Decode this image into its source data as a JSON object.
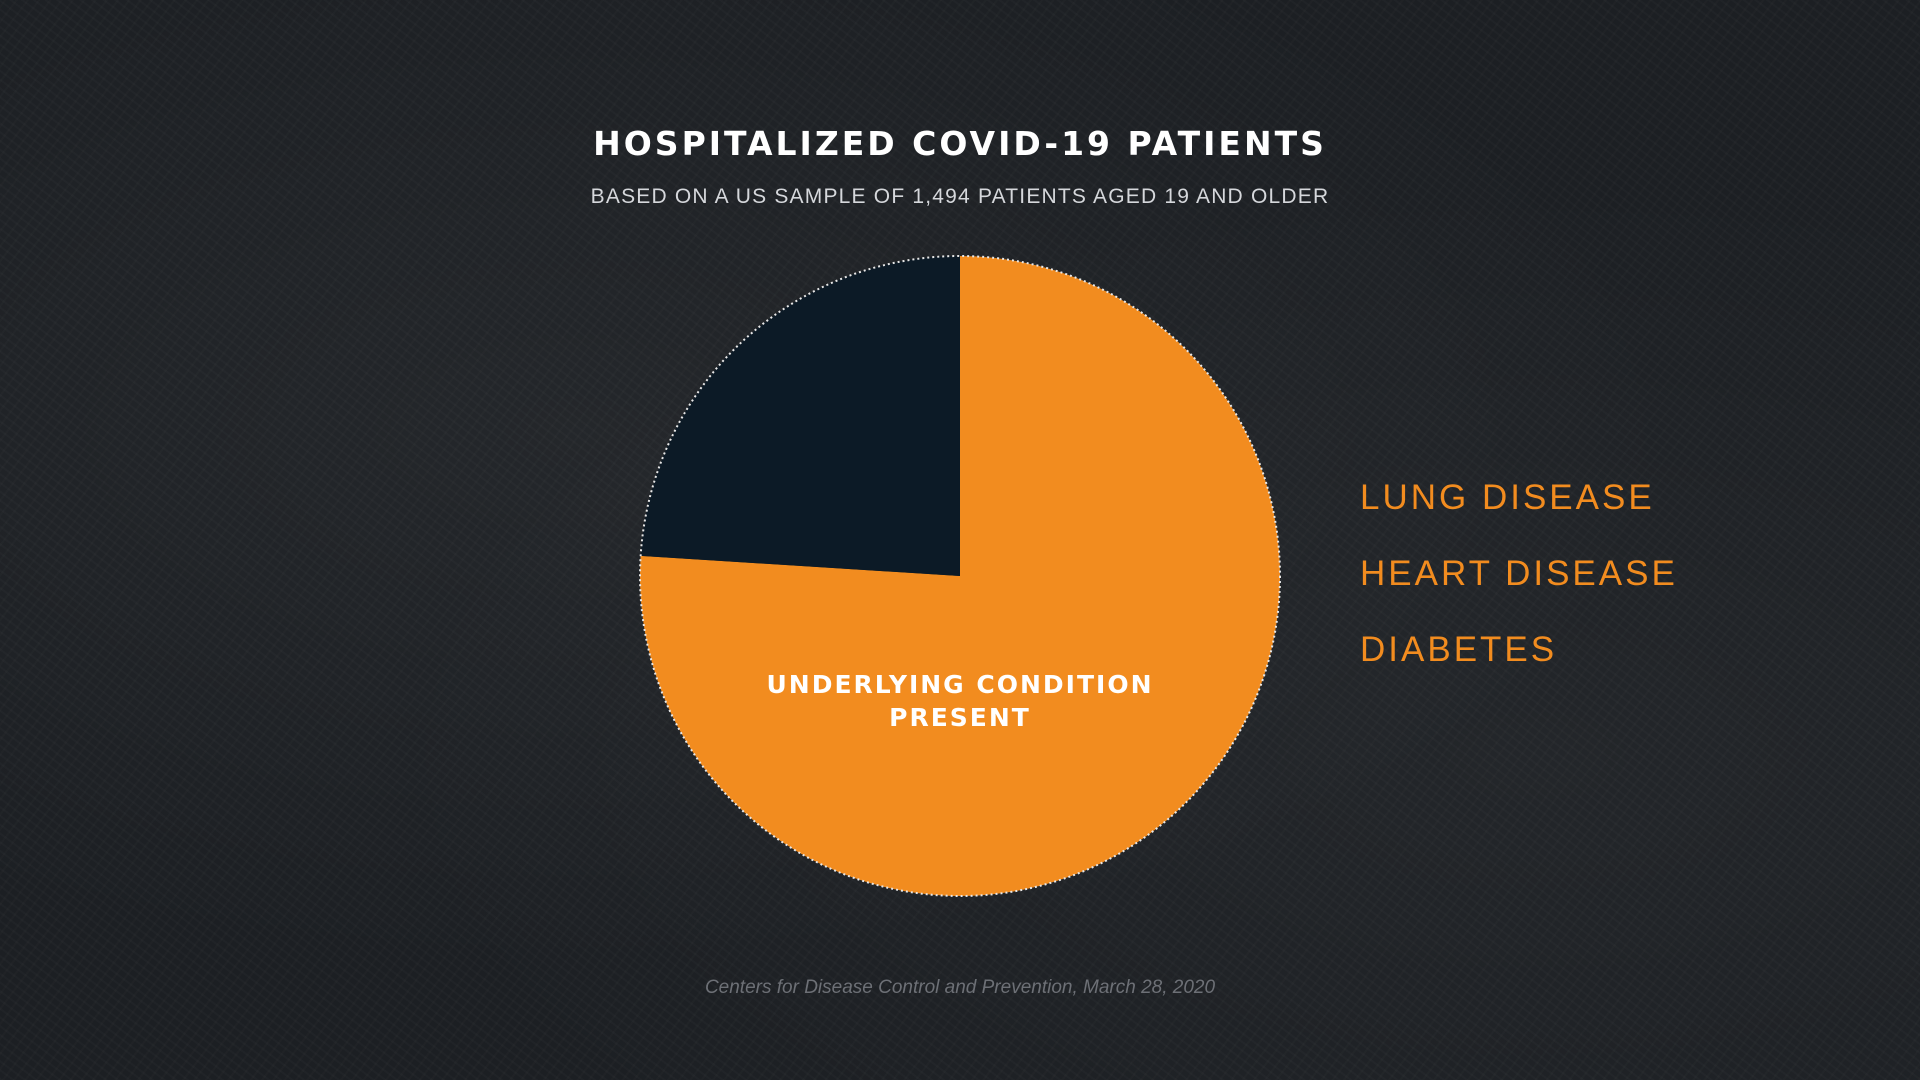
{
  "chart_data": {
    "type": "pie",
    "title": "HOSPITALIZED COVID-19 PATIENTS",
    "subtitle": "BASED ON A US SAMPLE OF 1,494 PATIENTS AGED 19 AND OLDER",
    "slices": [
      {
        "label": "UNDERLYING CONDITION PRESENT",
        "label_lines": [
          "UNDERLYING CONDITION",
          "PRESENT"
        ],
        "value": 76,
        "color": "#f28c1f"
      },
      {
        "label": "",
        "value": 24,
        "color": "#0c1a26"
      }
    ],
    "start_angle_deg": 0,
    "direction": "clockwise",
    "annotations": [
      "LUNG DISEASE",
      "HEART DISEASE",
      "DIABETES"
    ],
    "annotation_color": "#f28c1f",
    "source": "Centers for Disease Control and Prevention, March 28, 2020"
  }
}
